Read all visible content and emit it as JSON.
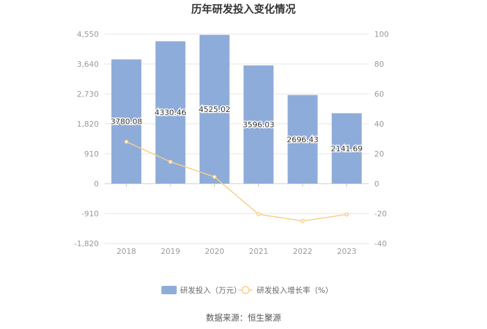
{
  "chart_data": {
    "type": "bar",
    "title": "历年研发投入变化情况",
    "categories": [
      "2018",
      "2019",
      "2020",
      "2021",
      "2022",
      "2023"
    ],
    "series": [
      {
        "name": "研发投入（万元）",
        "type": "bar",
        "axis": "left",
        "values": [
          3780.08,
          4330.46,
          4525.02,
          3596.03,
          2696.43,
          2141.69
        ],
        "labels": [
          "3780.08",
          "4330.46",
          "4525.02",
          "3596.03",
          "2696.43",
          "2141.69"
        ],
        "color": "#8eacd9"
      },
      {
        "name": "研发投入增长率（%）",
        "type": "line",
        "axis": "right",
        "values": [
          28.0,
          14.6,
          4.5,
          -20.5,
          -25.0,
          -20.6
        ],
        "color": "#f9cd8a"
      }
    ],
    "left_axis": {
      "ylim": [
        -1820,
        4550
      ],
      "ticks": [
        4550,
        3640,
        2730,
        1820,
        910,
        0,
        -910,
        -1820
      ],
      "tick_labels": [
        "4,550",
        "3,640",
        "2,730",
        "1,820",
        "910",
        "0",
        "-910",
        "-1,820"
      ]
    },
    "right_axis": {
      "ylim": [
        -40,
        100
      ],
      "ticks": [
        100,
        80,
        60,
        40,
        20,
        0,
        -20,
        -40
      ],
      "tick_labels": [
        "100",
        "80",
        "60",
        "40",
        "20",
        "0",
        "-20",
        "-40"
      ]
    },
    "grid": true,
    "legend": "bottom-center",
    "source": "数据来源：恒生聚源"
  }
}
